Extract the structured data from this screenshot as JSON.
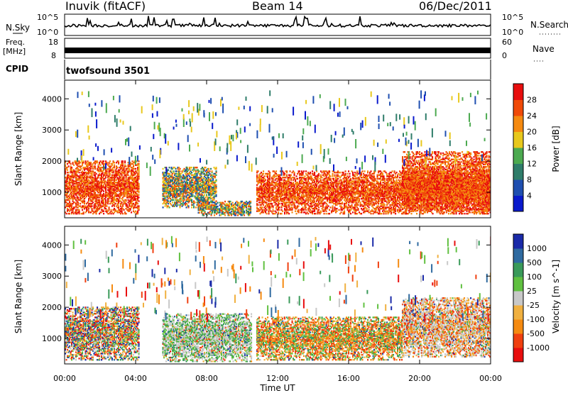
{
  "header": {
    "station": "Inuvik (fitACF)",
    "beam": "Beam 14",
    "date": "06/Dec/2011"
  },
  "top_panels": {
    "nsky_label": "N.Sky",
    "nsky_ticks": [
      "10^5",
      "10^0"
    ],
    "nsearch_label": "N.Search",
    "freq_label": "Freq.",
    "freq_unit": "[MHz]",
    "freq_ticks": [
      "18",
      "8"
    ],
    "nave_label": "Nave",
    "nave_ticks": [
      "60",
      "0"
    ],
    "cpid_label": "CPID",
    "cpid_value": "twofsound 3501"
  },
  "colors": {
    "power_scale": [
      "#0a1acc",
      "#1f4fb0",
      "#2f7d6a",
      "#4caa50",
      "#e8c81c",
      "#f58a10",
      "#f04a08",
      "#e80e0e"
    ],
    "velocity_scale": [
      "#e80e0e",
      "#f04010",
      "#f58a10",
      "#f0b040",
      "#c8c8c8",
      "#60c040",
      "#3a9a5a",
      "#2f6aa0",
      "#1a2aa8"
    ]
  },
  "chart_data": [
    {
      "type": "heatmap",
      "title": "Power",
      "xlabel": "Time UT",
      "ylabel": "Slant Range [km]",
      "x_ticks": [
        "00:00",
        "04:00",
        "08:00",
        "12:00",
        "16:00",
        "20:00",
        "00:00"
      ],
      "xlim_hours": [
        0,
        24
      ],
      "y_ticks": [
        1000,
        2000,
        3000,
        4000
      ],
      "ylim_km": [
        180,
        4600
      ],
      "colorbar_label": "Power [dB]",
      "colorbar_ticks": [
        4,
        8,
        12,
        16,
        20,
        24,
        28
      ],
      "colorbar_range": [
        0,
        32
      ],
      "echo_regions": [
        {
          "t0": 0.0,
          "t1": 4.2,
          "r0": 300,
          "r1": 2000,
          "level": "strong"
        },
        {
          "t0": 5.5,
          "t1": 8.5,
          "r0": 500,
          "r1": 1800,
          "level": "moderate"
        },
        {
          "t0": 7.5,
          "t1": 10.5,
          "r0": 250,
          "r1": 700,
          "level": "moderate"
        },
        {
          "t0": 10.8,
          "t1": 24.0,
          "r0": 300,
          "r1": 1700,
          "level": "strong"
        },
        {
          "t0": 19.0,
          "t1": 24.0,
          "r0": 400,
          "r1": 2300,
          "level": "strong"
        }
      ]
    },
    {
      "type": "heatmap",
      "title": "Velocity",
      "xlabel": "Time UT",
      "ylabel": "Slant Range [km]",
      "x_ticks": [
        "00:00",
        "04:00",
        "08:00",
        "12:00",
        "16:00",
        "20:00",
        "00:00"
      ],
      "xlim_hours": [
        0,
        24
      ],
      "y_ticks": [
        1000,
        2000,
        3000,
        4000
      ],
      "ylim_km": [
        180,
        4600
      ],
      "colorbar_label": "Velocity [m s^-1]",
      "colorbar_ticks": [
        1000,
        500,
        100,
        25,
        -25,
        -100,
        -500,
        -1000
      ],
      "echo_regions": [
        {
          "t0": 0.0,
          "t1": 4.2,
          "r0": 300,
          "r1": 2000,
          "dominant": "positive-negative mix"
        },
        {
          "t0": 5.5,
          "t1": 10.5,
          "r0": 250,
          "r1": 1800,
          "dominant": "green-grey"
        },
        {
          "t0": 10.8,
          "t1": 19.0,
          "r0": 300,
          "r1": 1700,
          "dominant": "green-orange"
        },
        {
          "t0": 19.0,
          "t1": 24.0,
          "r0": 400,
          "r1": 2300,
          "dominant": "orange-grey"
        }
      ]
    }
  ]
}
